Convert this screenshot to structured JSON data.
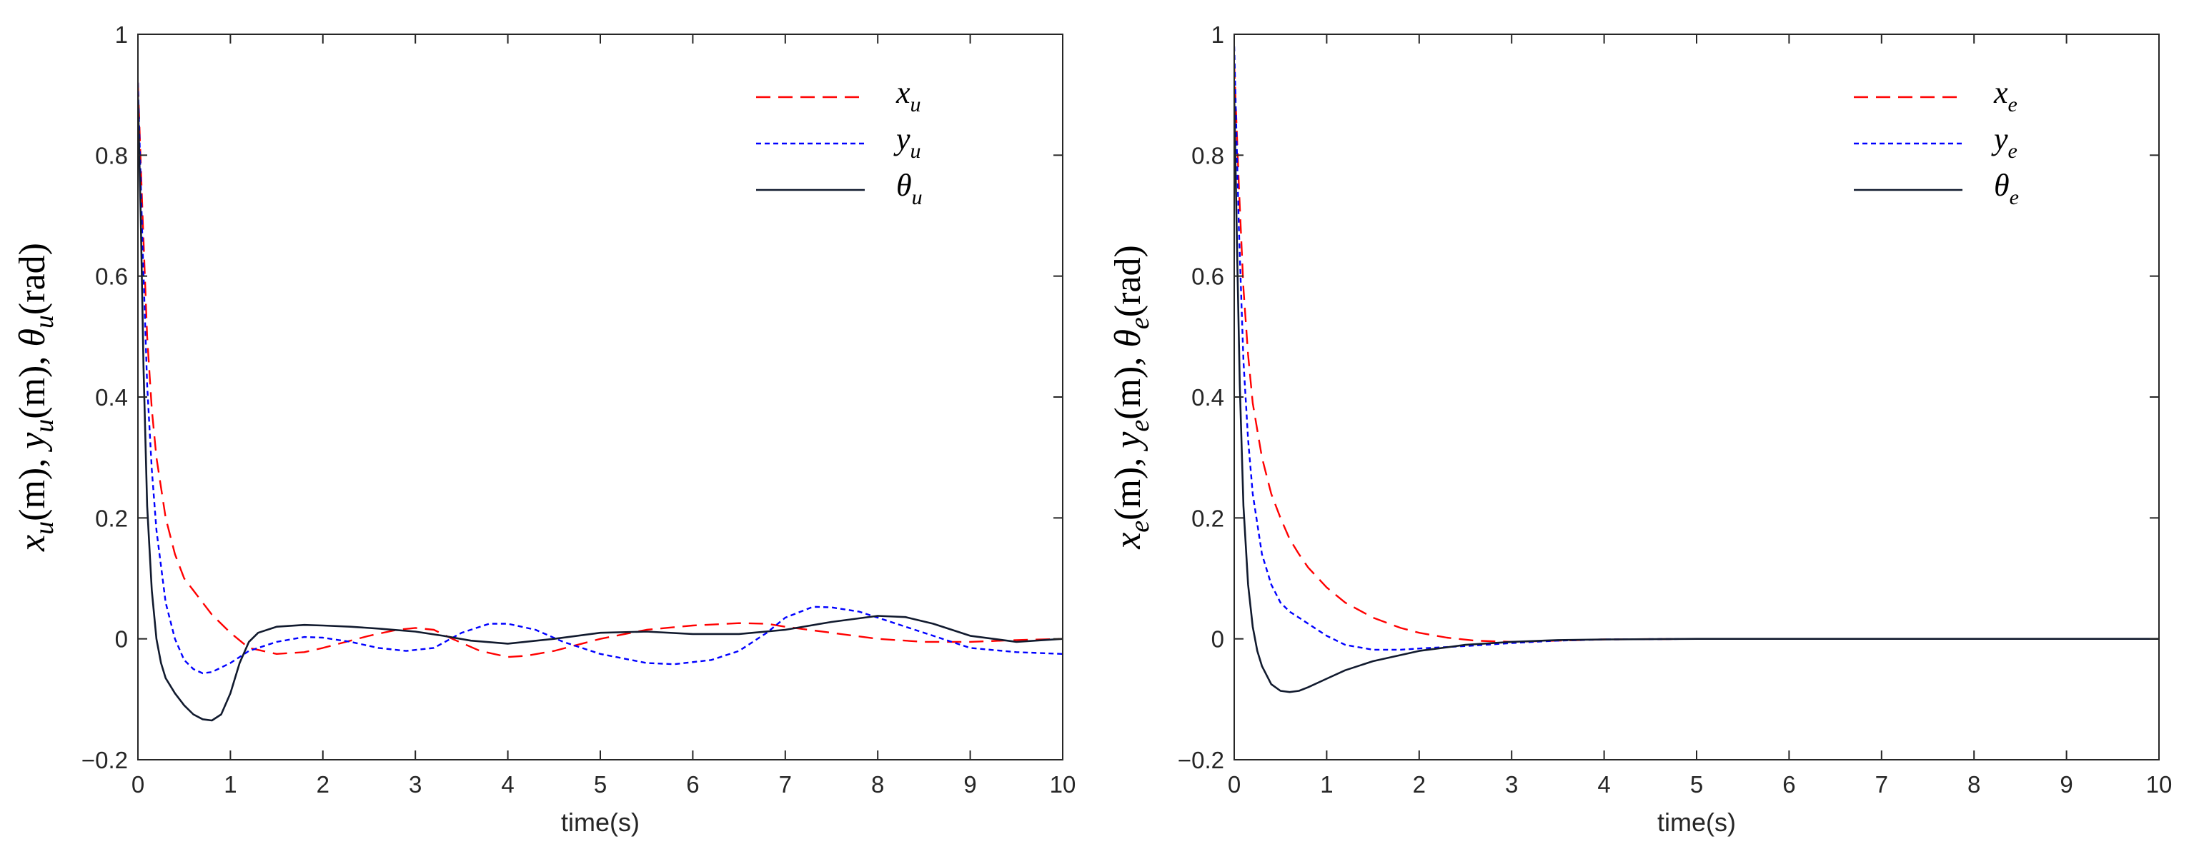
{
  "chart_data": [
    {
      "type": "line",
      "title": "",
      "xlabel": "time(s)",
      "ylabel": {
        "text": "x_u(m), y_u(m), θ_u(rad)",
        "parts": [
          {
            "t": "x",
            "italic": true
          },
          {
            "t": "u",
            "italic": true,
            "sub": true
          },
          {
            "t": "(m), "
          },
          {
            "t": "y",
            "italic": true
          },
          {
            "t": "u",
            "italic": true,
            "sub": true
          },
          {
            "t": "(m), "
          },
          {
            "t": "θ",
            "italic": true
          },
          {
            "t": "u",
            "italic": true,
            "sub": true
          },
          {
            "t": "(rad)"
          }
        ]
      },
      "xlim": [
        0,
        10
      ],
      "ylim": [
        -0.2,
        1
      ],
      "xticks": [
        "0",
        "1",
        "2",
        "3",
        "4",
        "5",
        "6",
        "7",
        "8",
        "9",
        "10"
      ],
      "yticks": [
        "−0.2",
        "0",
        "0.2",
        "0.4",
        "0.6",
        "0.8",
        "1"
      ],
      "grid": false,
      "legend_position": "top-right",
      "series": [
        {
          "name": "x_u",
          "legend_main": "x",
          "legend_sub": "u",
          "color": "#ff0000",
          "dash": "dashed",
          "x": [
            0,
            0.05,
            0.1,
            0.15,
            0.2,
            0.3,
            0.4,
            0.5,
            0.6,
            0.8,
            1.0,
            1.2,
            1.5,
            1.8,
            2.0,
            2.5,
            2.8,
            3.0,
            3.2,
            3.4,
            3.7,
            4.0,
            4.2,
            4.5,
            5.0,
            5.5,
            6.0,
            6.5,
            6.8,
            7.0,
            7.5,
            8.0,
            8.5,
            9.0,
            9.5,
            10.0
          ],
          "values": [
            0.92,
            0.7,
            0.5,
            0.38,
            0.3,
            0.2,
            0.14,
            0.1,
            0.08,
            0.04,
            0.01,
            -0.015,
            -0.025,
            -0.022,
            -0.015,
            0.005,
            0.015,
            0.018,
            0.015,
            0.0,
            -0.02,
            -0.03,
            -0.028,
            -0.02,
            0.0,
            0.015,
            0.022,
            0.026,
            0.025,
            0.02,
            0.01,
            0.0,
            -0.005,
            -0.005,
            -0.002,
            0.0
          ]
        },
        {
          "name": "y_u",
          "legend_main": "y",
          "legend_sub": "u",
          "color": "#0000ff",
          "dash": "dotted",
          "x": [
            0,
            0.05,
            0.1,
            0.15,
            0.2,
            0.3,
            0.4,
            0.5,
            0.6,
            0.7,
            0.8,
            1.0,
            1.2,
            1.5,
            1.8,
            2.0,
            2.3,
            2.6,
            2.9,
            3.2,
            3.5,
            3.8,
            4.0,
            4.3,
            4.6,
            5.0,
            5.5,
            5.8,
            6.2,
            6.5,
            6.8,
            7.0,
            7.3,
            7.5,
            7.8,
            8.0,
            8.3,
            8.6,
            9.0,
            9.5,
            10.0
          ],
          "values": [
            0.92,
            0.65,
            0.42,
            0.28,
            0.18,
            0.06,
            0.0,
            -0.035,
            -0.05,
            -0.057,
            -0.055,
            -0.04,
            -0.02,
            -0.005,
            0.003,
            0.002,
            -0.005,
            -0.015,
            -0.02,
            -0.015,
            0.01,
            0.025,
            0.025,
            0.015,
            -0.005,
            -0.025,
            -0.04,
            -0.042,
            -0.035,
            -0.02,
            0.01,
            0.035,
            0.053,
            0.052,
            0.045,
            0.035,
            0.02,
            0.005,
            -0.015,
            -0.022,
            -0.025
          ]
        },
        {
          "name": "θ_u",
          "legend_main": "θ",
          "legend_sub": "u",
          "color": "#111a2e",
          "dash": "solid",
          "x": [
            0,
            0.03,
            0.06,
            0.1,
            0.15,
            0.2,
            0.25,
            0.3,
            0.4,
            0.5,
            0.6,
            0.7,
            0.8,
            0.9,
            1.0,
            1.1,
            1.2,
            1.3,
            1.5,
            1.8,
            2.0,
            2.3,
            2.6,
            3.0,
            3.3,
            3.6,
            4.0,
            4.5,
            5.0,
            5.5,
            6.0,
            6.5,
            7.0,
            7.5,
            8.0,
            8.3,
            8.6,
            9.0,
            9.5,
            10.0
          ],
          "values": [
            0.9,
            0.7,
            0.45,
            0.22,
            0.08,
            0.0,
            -0.04,
            -0.065,
            -0.09,
            -0.11,
            -0.125,
            -0.133,
            -0.135,
            -0.125,
            -0.09,
            -0.04,
            -0.005,
            0.01,
            0.02,
            0.023,
            0.022,
            0.02,
            0.017,
            0.012,
            0.005,
            -0.003,
            -0.008,
            0.0,
            0.01,
            0.012,
            0.008,
            0.008,
            0.015,
            0.028,
            0.038,
            0.036,
            0.025,
            0.005,
            -0.005,
            0.0
          ]
        }
      ]
    },
    {
      "type": "line",
      "title": "",
      "xlabel": "time(s)",
      "ylabel": {
        "text": "x_e(m), y_e(m), θ_e(rad)",
        "parts": [
          {
            "t": "x",
            "italic": true
          },
          {
            "t": "e",
            "italic": true,
            "sub": true
          },
          {
            "t": "(m), "
          },
          {
            "t": "y",
            "italic": true
          },
          {
            "t": "e",
            "italic": true,
            "sub": true
          },
          {
            "t": "(m), "
          },
          {
            "t": "θ",
            "italic": true
          },
          {
            "t": "e",
            "italic": true,
            "sub": true
          },
          {
            "t": "(rad)"
          }
        ]
      },
      "xlim": [
        0,
        10
      ],
      "ylim": [
        -0.2,
        1
      ],
      "xticks": [
        "0",
        "1",
        "2",
        "3",
        "4",
        "5",
        "6",
        "7",
        "8",
        "9",
        "10"
      ],
      "yticks": [
        "−0.2",
        "0",
        "0.2",
        "0.4",
        "0.6",
        "0.8",
        "1"
      ],
      "grid": false,
      "legend_position": "top-right",
      "series": [
        {
          "name": "x_e",
          "legend_main": "x",
          "legend_sub": "e",
          "color": "#ff0000",
          "dash": "dashed",
          "x": [
            0,
            0.05,
            0.1,
            0.15,
            0.2,
            0.3,
            0.4,
            0.5,
            0.6,
            0.7,
            0.8,
            1.0,
            1.2,
            1.5,
            1.8,
            2.0,
            2.3,
            2.6,
            3.0,
            3.5,
            4.0,
            5.0,
            6.0,
            8.0,
            10.0
          ],
          "values": [
            0.95,
            0.75,
            0.58,
            0.47,
            0.39,
            0.3,
            0.24,
            0.2,
            0.165,
            0.14,
            0.118,
            0.085,
            0.06,
            0.035,
            0.018,
            0.01,
            0.002,
            -0.003,
            -0.005,
            -0.003,
            -0.001,
            0.0,
            0.0,
            0.0,
            0.0
          ]
        },
        {
          "name": "y_e",
          "legend_main": "y",
          "legend_sub": "e",
          "color": "#0000ff",
          "dash": "dotted",
          "x": [
            0,
            0.05,
            0.1,
            0.15,
            0.2,
            0.3,
            0.4,
            0.5,
            0.6,
            0.7,
            0.8,
            1.0,
            1.2,
            1.5,
            1.8,
            2.0,
            2.5,
            3.0,
            3.5,
            4.0,
            5.0,
            6.0,
            8.0,
            10.0
          ],
          "values": [
            0.98,
            0.68,
            0.46,
            0.33,
            0.24,
            0.14,
            0.09,
            0.06,
            0.045,
            0.035,
            0.025,
            0.005,
            -0.01,
            -0.018,
            -0.018,
            -0.016,
            -0.012,
            -0.007,
            -0.003,
            -0.001,
            0.0,
            0.0,
            0.0,
            0.0
          ]
        },
        {
          "name": "θ_e",
          "legend_main": "θ",
          "legend_sub": "e",
          "color": "#111a2e",
          "dash": "solid",
          "x": [
            0,
            0.03,
            0.06,
            0.1,
            0.15,
            0.2,
            0.25,
            0.3,
            0.4,
            0.5,
            0.6,
            0.7,
            0.8,
            1.0,
            1.2,
            1.5,
            2.0,
            2.5,
            3.0,
            3.5,
            4.0,
            5.0,
            6.0,
            8.0,
            10.0
          ],
          "values": [
            0.9,
            0.65,
            0.42,
            0.22,
            0.09,
            0.02,
            -0.02,
            -0.045,
            -0.075,
            -0.086,
            -0.088,
            -0.086,
            -0.08,
            -0.066,
            -0.052,
            -0.037,
            -0.02,
            -0.01,
            -0.005,
            -0.002,
            -0.001,
            0.0,
            0.0,
            0.0,
            0.0
          ]
        }
      ]
    }
  ]
}
